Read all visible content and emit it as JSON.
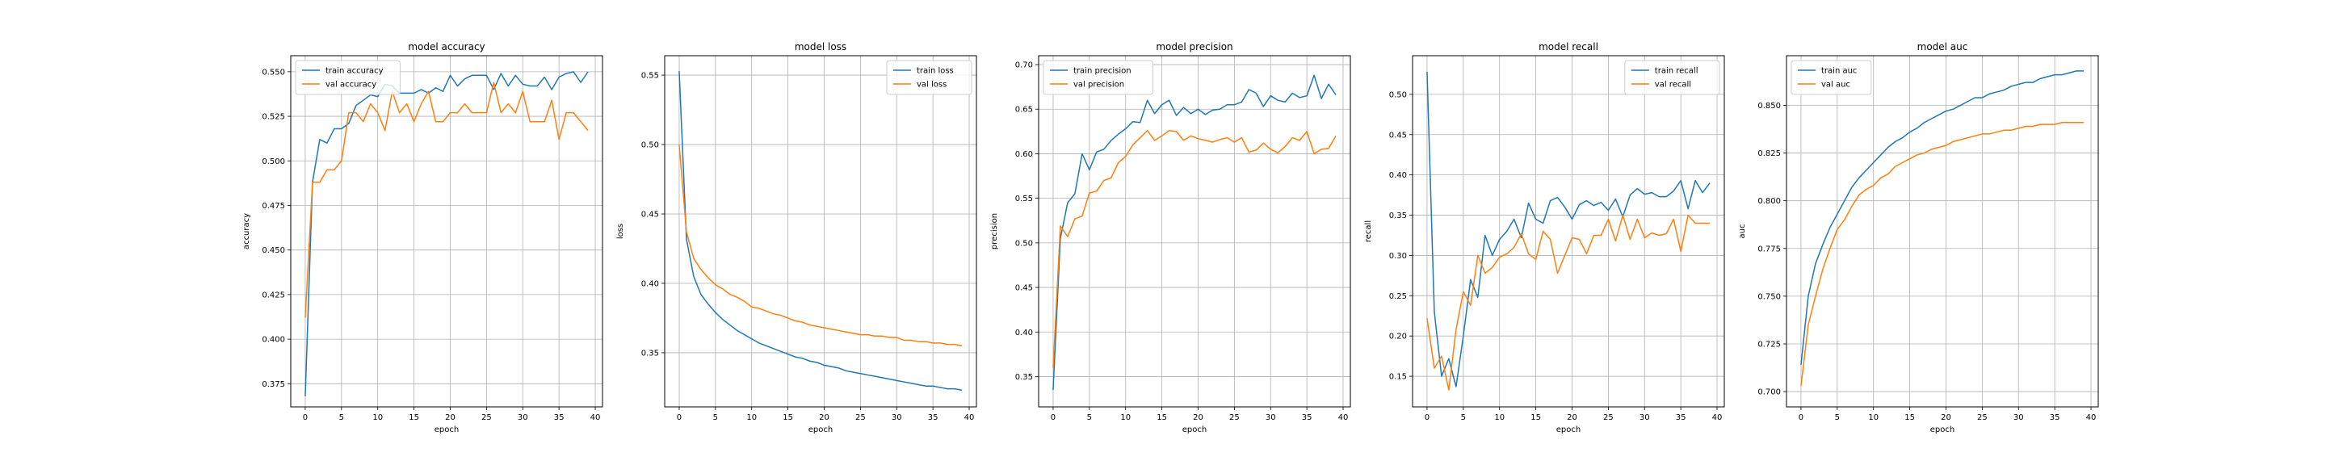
{
  "colors": {
    "train": "#1f77b4",
    "val": "#ff7f0e"
  },
  "chart_data": [
    {
      "type": "line",
      "title": "model accuracy",
      "xlabel": "epoch",
      "ylabel": "accuracy",
      "xlim": [
        -2,
        41
      ],
      "ylim": [
        0.362,
        0.559
      ],
      "xticks": [
        0,
        5,
        10,
        15,
        20,
        25,
        30,
        35,
        40
      ],
      "yticks": [
        0.375,
        0.4,
        0.425,
        0.45,
        0.475,
        0.5,
        0.525,
        0.55
      ],
      "ytick_labels": [
        "0.375",
        "0.400",
        "0.425",
        "0.450",
        "0.475",
        "0.500",
        "0.525",
        "0.550"
      ],
      "grid": true,
      "legend": "top-left",
      "x": [
        0,
        1,
        2,
        3,
        4,
        5,
        6,
        7,
        8,
        9,
        10,
        11,
        12,
        13,
        14,
        15,
        16,
        17,
        18,
        19,
        20,
        21,
        22,
        23,
        24,
        25,
        26,
        27,
        28,
        29,
        30,
        31,
        32,
        33,
        34,
        35,
        36,
        37,
        38,
        39
      ],
      "series": [
        {
          "name": "train accuracy",
          "color_key": "train",
          "values": [
            0.368,
            0.488,
            0.512,
            0.51,
            0.518,
            0.518,
            0.521,
            0.531,
            0.534,
            0.537,
            0.536,
            0.543,
            0.542,
            0.538,
            0.538,
            0.538,
            0.54,
            0.538,
            0.541,
            0.539,
            0.548,
            0.542,
            0.546,
            0.548,
            0.548,
            0.548,
            0.54,
            0.549,
            0.542,
            0.548,
            0.543,
            0.542,
            0.542,
            0.547,
            0.54,
            0.547,
            0.549,
            0.55,
            0.544,
            0.55
          ]
        },
        {
          "name": "val accuracy",
          "color_key": "val",
          "values": [
            0.412,
            0.488,
            0.488,
            0.495,
            0.495,
            0.5,
            0.527,
            0.527,
            0.522,
            0.532,
            0.527,
            0.517,
            0.539,
            0.527,
            0.532,
            0.522,
            0.532,
            0.539,
            0.522,
            0.522,
            0.527,
            0.527,
            0.532,
            0.527,
            0.527,
            0.527,
            0.544,
            0.527,
            0.532,
            0.527,
            0.539,
            0.522,
            0.522,
            0.522,
            0.534,
            0.512,
            0.527,
            0.527,
            0.522,
            0.517
          ]
        }
      ]
    },
    {
      "type": "line",
      "title": "model loss",
      "xlabel": "epoch",
      "ylabel": "loss",
      "xlim": [
        -2,
        41
      ],
      "ylim": [
        0.311,
        0.564
      ],
      "xticks": [
        0,
        5,
        10,
        15,
        20,
        25,
        30,
        35,
        40
      ],
      "yticks": [
        0.35,
        0.4,
        0.45,
        0.5,
        0.55
      ],
      "ytick_labels": [
        "0.35",
        "0.40",
        "0.45",
        "0.50",
        "0.55"
      ],
      "grid": true,
      "legend": "top-right",
      "x": [
        0,
        1,
        2,
        3,
        4,
        5,
        6,
        7,
        8,
        9,
        10,
        11,
        12,
        13,
        14,
        15,
        16,
        17,
        18,
        19,
        20,
        21,
        22,
        23,
        24,
        25,
        26,
        27,
        28,
        29,
        30,
        31,
        32,
        33,
        34,
        35,
        36,
        37,
        38,
        39
      ],
      "series": [
        {
          "name": "train loss",
          "color_key": "train",
          "values": [
            0.553,
            0.432,
            0.405,
            0.392,
            0.385,
            0.379,
            0.374,
            0.37,
            0.366,
            0.363,
            0.36,
            0.357,
            0.355,
            0.353,
            0.351,
            0.349,
            0.347,
            0.346,
            0.344,
            0.343,
            0.341,
            0.34,
            0.339,
            0.337,
            0.336,
            0.335,
            0.334,
            0.333,
            0.332,
            0.331,
            0.33,
            0.329,
            0.328,
            0.327,
            0.326,
            0.326,
            0.325,
            0.324,
            0.324,
            0.323
          ]
        },
        {
          "name": "val loss",
          "color_key": "val",
          "values": [
            0.5,
            0.437,
            0.418,
            0.41,
            0.404,
            0.399,
            0.396,
            0.392,
            0.39,
            0.387,
            0.383,
            0.382,
            0.38,
            0.378,
            0.377,
            0.375,
            0.373,
            0.372,
            0.37,
            0.369,
            0.368,
            0.367,
            0.366,
            0.365,
            0.364,
            0.363,
            0.363,
            0.362,
            0.362,
            0.361,
            0.361,
            0.359,
            0.359,
            0.358,
            0.358,
            0.357,
            0.357,
            0.356,
            0.356,
            0.355
          ]
        }
      ]
    },
    {
      "type": "line",
      "title": "model precision",
      "xlabel": "epoch",
      "ylabel": "precision",
      "xlim": [
        -2,
        41
      ],
      "ylim": [
        0.316,
        0.71
      ],
      "xticks": [
        0,
        5,
        10,
        15,
        20,
        25,
        30,
        35,
        40
      ],
      "yticks": [
        0.35,
        0.4,
        0.45,
        0.5,
        0.55,
        0.6,
        0.65,
        0.7
      ],
      "ytick_labels": [
        "0.35",
        "0.40",
        "0.45",
        "0.50",
        "0.55",
        "0.60",
        "0.65",
        "0.70"
      ],
      "grid": true,
      "legend": "top-left",
      "x": [
        0,
        1,
        2,
        3,
        4,
        5,
        6,
        7,
        8,
        9,
        10,
        11,
        12,
        13,
        14,
        15,
        16,
        17,
        18,
        19,
        20,
        21,
        22,
        23,
        24,
        25,
        26,
        27,
        28,
        29,
        30,
        31,
        32,
        33,
        34,
        35,
        36,
        37,
        38,
        39
      ],
      "series": [
        {
          "name": "train precision",
          "color_key": "train",
          "values": [
            0.335,
            0.505,
            0.545,
            0.555,
            0.6,
            0.582,
            0.602,
            0.605,
            0.615,
            0.622,
            0.628,
            0.636,
            0.635,
            0.66,
            0.645,
            0.655,
            0.66,
            0.643,
            0.652,
            0.645,
            0.65,
            0.644,
            0.649,
            0.65,
            0.655,
            0.655,
            0.658,
            0.672,
            0.668,
            0.653,
            0.665,
            0.66,
            0.658,
            0.668,
            0.663,
            0.665,
            0.688,
            0.662,
            0.678,
            0.666
          ]
        },
        {
          "name": "val precision",
          "color_key": "val",
          "values": [
            0.36,
            0.519,
            0.507,
            0.527,
            0.53,
            0.556,
            0.558,
            0.57,
            0.573,
            0.59,
            0.597,
            0.61,
            0.618,
            0.626,
            0.615,
            0.62,
            0.626,
            0.625,
            0.615,
            0.62,
            0.617,
            0.615,
            0.613,
            0.616,
            0.618,
            0.613,
            0.618,
            0.602,
            0.604,
            0.612,
            0.605,
            0.601,
            0.608,
            0.618,
            0.615,
            0.625,
            0.6,
            0.605,
            0.606,
            0.62
          ]
        }
      ]
    },
    {
      "type": "line",
      "title": "model recall",
      "xlabel": "epoch",
      "ylabel": "recall",
      "xlim": [
        -2,
        41
      ],
      "ylim": [
        0.112,
        0.548
      ],
      "xticks": [
        0,
        5,
        10,
        15,
        20,
        25,
        30,
        35,
        40
      ],
      "yticks": [
        0.15,
        0.2,
        0.25,
        0.3,
        0.35,
        0.4,
        0.45,
        0.5
      ],
      "ytick_labels": [
        "0.15",
        "0.20",
        "0.25",
        "0.30",
        "0.35",
        "0.40",
        "0.45",
        "0.50"
      ],
      "grid": true,
      "legend": "top-right",
      "x": [
        0,
        1,
        2,
        3,
        4,
        5,
        6,
        7,
        8,
        9,
        10,
        11,
        12,
        13,
        14,
        15,
        16,
        17,
        18,
        19,
        20,
        21,
        22,
        23,
        24,
        25,
        26,
        27,
        28,
        29,
        30,
        31,
        32,
        33,
        34,
        35,
        36,
        37,
        38,
        39
      ],
      "series": [
        {
          "name": "train recall",
          "color_key": "train",
          "values": [
            0.528,
            0.23,
            0.15,
            0.172,
            0.137,
            0.2,
            0.27,
            0.248,
            0.325,
            0.3,
            0.32,
            0.33,
            0.345,
            0.322,
            0.365,
            0.345,
            0.34,
            0.368,
            0.372,
            0.36,
            0.345,
            0.363,
            0.368,
            0.362,
            0.366,
            0.356,
            0.37,
            0.348,
            0.375,
            0.383,
            0.376,
            0.378,
            0.373,
            0.373,
            0.38,
            0.393,
            0.358,
            0.393,
            0.378,
            0.39
          ]
        },
        {
          "name": "val recall",
          "color_key": "val",
          "values": [
            0.222,
            0.16,
            0.175,
            0.133,
            0.208,
            0.255,
            0.238,
            0.3,
            0.278,
            0.285,
            0.298,
            0.302,
            0.31,
            0.327,
            0.302,
            0.295,
            0.33,
            0.32,
            0.278,
            0.3,
            0.322,
            0.32,
            0.302,
            0.325,
            0.325,
            0.345,
            0.318,
            0.35,
            0.32,
            0.345,
            0.322,
            0.328,
            0.325,
            0.327,
            0.345,
            0.305,
            0.35,
            0.34,
            0.34,
            0.34
          ]
        }
      ]
    },
    {
      "type": "line",
      "title": "model auc",
      "xlabel": "epoch",
      "ylabel": "auc",
      "xlim": [
        -2,
        41
      ],
      "ylim": [
        0.692,
        0.876
      ],
      "xticks": [
        0,
        5,
        10,
        15,
        20,
        25,
        30,
        35,
        40
      ],
      "yticks": [
        0.7,
        0.725,
        0.75,
        0.775,
        0.8,
        0.825,
        0.85
      ],
      "ytick_labels": [
        "0.700",
        "0.725",
        "0.750",
        "0.775",
        "0.800",
        "0.825",
        "0.850"
      ],
      "grid": true,
      "legend": "top-left",
      "x": [
        0,
        1,
        2,
        3,
        4,
        5,
        6,
        7,
        8,
        9,
        10,
        11,
        12,
        13,
        14,
        15,
        16,
        17,
        18,
        19,
        20,
        21,
        22,
        23,
        24,
        25,
        26,
        27,
        28,
        29,
        30,
        31,
        32,
        33,
        34,
        35,
        36,
        37,
        38,
        39
      ],
      "series": [
        {
          "name": "train auc",
          "color_key": "train",
          "values": [
            0.714,
            0.75,
            0.767,
            0.777,
            0.786,
            0.793,
            0.8,
            0.807,
            0.812,
            0.816,
            0.82,
            0.824,
            0.828,
            0.831,
            0.833,
            0.836,
            0.838,
            0.841,
            0.843,
            0.845,
            0.847,
            0.848,
            0.85,
            0.852,
            0.854,
            0.854,
            0.856,
            0.857,
            0.858,
            0.86,
            0.861,
            0.862,
            0.862,
            0.864,
            0.865,
            0.866,
            0.866,
            0.867,
            0.868,
            0.868
          ]
        },
        {
          "name": "val auc",
          "color_key": "val",
          "values": [
            0.703,
            0.735,
            0.75,
            0.764,
            0.775,
            0.785,
            0.79,
            0.797,
            0.803,
            0.806,
            0.808,
            0.812,
            0.814,
            0.818,
            0.82,
            0.822,
            0.824,
            0.825,
            0.827,
            0.828,
            0.829,
            0.831,
            0.832,
            0.833,
            0.834,
            0.835,
            0.835,
            0.836,
            0.837,
            0.837,
            0.838,
            0.839,
            0.839,
            0.84,
            0.84,
            0.84,
            0.841,
            0.841,
            0.841,
            0.841
          ]
        }
      ]
    }
  ]
}
